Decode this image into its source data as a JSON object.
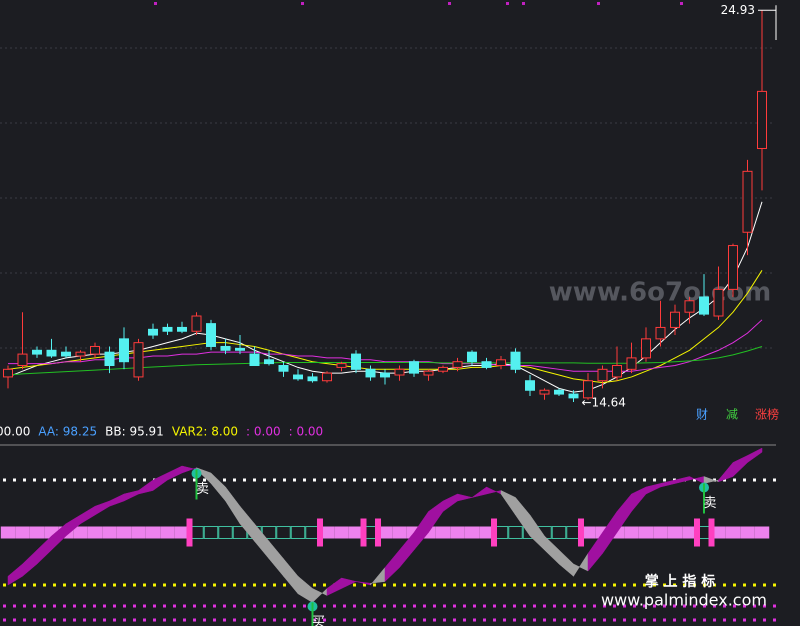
{
  "chart_data": {
    "type": "candlestick",
    "ylim": [
      14.3,
      25.2
    ],
    "high_label": 24.93,
    "low_label": 14.64,
    "low_label_text": "←14.64",
    "up_color": "#ff3b3b",
    "down_color": "#54f0f0",
    "candles": [
      [
        15.3,
        15.6,
        15.0,
        15.5
      ],
      [
        15.6,
        17.0,
        15.5,
        15.9
      ],
      [
        16.0,
        16.1,
        15.8,
        15.9
      ],
      [
        16.0,
        16.3,
        15.8,
        15.85
      ],
      [
        15.95,
        16.1,
        15.8,
        15.85
      ],
      [
        15.85,
        16.0,
        15.7,
        15.95
      ],
      [
        15.9,
        16.2,
        15.8,
        16.1
      ],
      [
        15.95,
        16.1,
        15.4,
        15.6
      ],
      [
        16.3,
        16.6,
        15.5,
        15.7
      ],
      [
        15.3,
        16.3,
        15.2,
        16.2
      ],
      [
        16.55,
        16.7,
        16.3,
        16.4
      ],
      [
        16.6,
        16.7,
        16.4,
        16.5
      ],
      [
        16.6,
        16.75,
        16.45,
        16.5
      ],
      [
        16.5,
        17.0,
        16.4,
        16.9
      ],
      [
        16.7,
        16.8,
        16.0,
        16.1
      ],
      [
        16.1,
        16.3,
        15.9,
        16.0
      ],
      [
        16.05,
        16.4,
        15.9,
        16.0
      ],
      [
        15.9,
        16.1,
        15.6,
        15.6
      ],
      [
        15.75,
        16.0,
        15.6,
        15.65
      ],
      [
        15.6,
        15.7,
        15.3,
        15.45
      ],
      [
        15.35,
        15.5,
        15.2,
        15.25
      ],
      [
        15.3,
        15.4,
        15.15,
        15.2
      ],
      [
        15.2,
        15.45,
        15.15,
        15.4
      ],
      [
        15.55,
        15.7,
        15.45,
        15.65
      ],
      [
        15.9,
        16.0,
        15.4,
        15.5
      ],
      [
        15.5,
        15.6,
        15.2,
        15.3
      ],
      [
        15.4,
        15.5,
        15.1,
        15.3
      ],
      [
        15.35,
        15.6,
        15.2,
        15.5
      ],
      [
        15.7,
        15.75,
        15.3,
        15.4
      ],
      [
        15.35,
        15.5,
        15.2,
        15.45
      ],
      [
        15.45,
        15.6,
        15.4,
        15.55
      ],
      [
        15.55,
        15.8,
        15.45,
        15.7
      ],
      [
        15.95,
        16.0,
        15.6,
        15.7
      ],
      [
        15.7,
        15.8,
        15.5,
        15.55
      ],
      [
        15.6,
        15.85,
        15.5,
        15.75
      ],
      [
        15.95,
        16.05,
        15.4,
        15.5
      ],
      [
        15.2,
        15.35,
        14.8,
        14.95
      ],
      [
        14.85,
        15.0,
        14.7,
        14.95
      ],
      [
        14.95,
        15.0,
        14.8,
        14.85
      ],
      [
        14.85,
        14.95,
        14.64,
        14.75
      ],
      [
        14.75,
        15.4,
        14.7,
        15.2
      ],
      [
        15.2,
        15.6,
        15.0,
        15.5
      ],
      [
        15.3,
        16.1,
        15.2,
        15.6
      ],
      [
        15.5,
        16.2,
        15.4,
        15.8
      ],
      [
        15.8,
        16.6,
        15.7,
        16.3
      ],
      [
        16.3,
        17.3,
        16.1,
        16.6
      ],
      [
        16.6,
        17.2,
        16.4,
        17.0
      ],
      [
        17.0,
        17.4,
        16.7,
        17.3
      ],
      [
        17.4,
        18.0,
        16.9,
        16.95
      ],
      [
        16.9,
        18.2,
        16.8,
        17.6
      ],
      [
        17.6,
        18.8,
        17.4,
        18.75
      ],
      [
        19.1,
        21.0,
        18.5,
        20.7
      ],
      [
        21.3,
        24.93,
        20.2,
        22.8
      ]
    ],
    "ma": [
      {
        "color": "#ffffff",
        "values": [
          15.3,
          15.45,
          15.6,
          15.7,
          15.8,
          15.85,
          15.9,
          15.9,
          15.95,
          16.0,
          16.1,
          16.2,
          16.3,
          16.45,
          16.4,
          16.3,
          16.2,
          16.0,
          15.85,
          15.7,
          15.55,
          15.45,
          15.4,
          15.4,
          15.45,
          15.45,
          15.4,
          15.4,
          15.45,
          15.45,
          15.5,
          15.55,
          15.6,
          15.6,
          15.65,
          15.6,
          15.4,
          15.2,
          15.0,
          14.9,
          14.95,
          15.1,
          15.3,
          15.55,
          15.85,
          16.2,
          16.55,
          16.85,
          17.1,
          17.4,
          17.9,
          18.7,
          19.9
        ]
      },
      {
        "color": "#f5f500",
        "values": [
          15.5,
          15.55,
          15.6,
          15.65,
          15.7,
          15.75,
          15.8,
          15.85,
          15.9,
          15.95,
          16.0,
          16.05,
          16.1,
          16.15,
          16.2,
          16.2,
          16.15,
          16.1,
          16.0,
          15.9,
          15.8,
          15.7,
          15.65,
          15.6,
          15.55,
          15.5,
          15.5,
          15.5,
          15.5,
          15.5,
          15.5,
          15.5,
          15.55,
          15.55,
          15.6,
          15.6,
          15.55,
          15.45,
          15.35,
          15.25,
          15.2,
          15.15,
          15.2,
          15.3,
          15.45,
          15.6,
          15.8,
          16.0,
          16.3,
          16.6,
          17.0,
          17.5,
          18.1
        ]
      },
      {
        "color": "#e030e0",
        "values": [
          15.65,
          15.65,
          15.65,
          15.65,
          15.7,
          15.7,
          15.75,
          15.75,
          15.8,
          15.8,
          15.85,
          15.85,
          15.9,
          15.9,
          15.95,
          15.95,
          15.95,
          15.95,
          15.9,
          15.9,
          15.85,
          15.85,
          15.8,
          15.8,
          15.75,
          15.75,
          15.7,
          15.7,
          15.7,
          15.7,
          15.65,
          15.65,
          15.65,
          15.65,
          15.6,
          15.6,
          15.6,
          15.55,
          15.5,
          15.45,
          15.45,
          15.45,
          15.45,
          15.45,
          15.5,
          15.55,
          15.6,
          15.7,
          15.85,
          16.0,
          16.2,
          16.45,
          16.8
        ]
      },
      {
        "color": "#22c022",
        "values": [
          15.35,
          15.38,
          15.4,
          15.42,
          15.44,
          15.46,
          15.48,
          15.5,
          15.52,
          15.54,
          15.56,
          15.58,
          15.6,
          15.62,
          15.63,
          15.64,
          15.65,
          15.66,
          15.67,
          15.68,
          15.68,
          15.68,
          15.68,
          15.68,
          15.68,
          15.68,
          15.68,
          15.68,
          15.68,
          15.68,
          15.67,
          15.67,
          15.67,
          15.67,
          15.67,
          15.67,
          15.67,
          15.67,
          15.67,
          15.67,
          15.66,
          15.66,
          15.66,
          15.66,
          15.67,
          15.68,
          15.7,
          15.72,
          15.75,
          15.8,
          15.88,
          15.98,
          16.1
        ]
      }
    ],
    "buttons": [
      {
        "label": "财",
        "color": "#4aa0ff"
      },
      {
        "label": "减",
        "color": "#40d040"
      },
      {
        "label": "涨榜",
        "color": "#ff4040"
      }
    ],
    "watermark": "www.6o7o.com",
    "indicator": {
      "header": [
        {
          "label": "00.00",
          "color": "#ffffff"
        },
        {
          "label": "AA: 98.25",
          "color": "#4aa0ff"
        },
        {
          "label": "BB: 95.91",
          "color": "#ffffff"
        },
        {
          "label": "VAR2: 8.00",
          "color": "#f5f500"
        },
        {
          "label": ": 0.00",
          "color": "#e030e0"
        },
        {
          "label": ": 0.00",
          "color": "#e030e0"
        }
      ],
      "ylim": [
        0,
        100
      ],
      "band": 50,
      "up_color": "#a010a0",
      "down_color": "#a0a0a0",
      "AA": [
        25,
        32,
        40,
        48,
        55,
        60,
        65,
        68,
        72,
        74,
        80,
        84,
        88,
        86,
        78,
        68,
        55,
        45,
        35,
        25,
        15,
        10,
        18,
        24,
        22,
        20,
        30,
        40,
        50,
        62,
        68,
        72,
        70,
        76,
        72,
        60,
        48,
        40,
        32,
        25,
        38,
        50,
        62,
        72,
        76,
        78,
        80,
        82,
        78,
        80,
        90,
        94,
        98.25
      ],
      "BB": [
        20,
        25,
        32,
        40,
        48,
        55,
        60,
        65,
        68,
        72,
        74,
        80,
        84,
        87,
        84,
        76,
        65,
        55,
        45,
        35,
        25,
        18,
        14,
        18,
        22,
        21,
        22,
        30,
        40,
        50,
        62,
        68,
        70,
        72,
        74,
        70,
        60,
        48,
        40,
        32,
        28,
        38,
        50,
        62,
        72,
        76,
        78,
        80,
        82,
        79,
        82,
        90,
        95.91
      ],
      "signals": [
        null,
        null,
        null,
        null,
        null,
        null,
        null,
        null,
        null,
        null,
        null,
        null,
        null,
        "卖",
        null,
        null,
        null,
        null,
        null,
        null,
        null,
        "买",
        null,
        null,
        null,
        null,
        null,
        null,
        null,
        null,
        null,
        null,
        null,
        null,
        null,
        null,
        null,
        null,
        null,
        null,
        null,
        null,
        null,
        null,
        null,
        null,
        null,
        null,
        "卖",
        null,
        null,
        null,
        null
      ],
      "levels": [
        {
          "value": 80,
          "color": "#ffffff"
        },
        {
          "value": 20,
          "color": "#f5f500"
        },
        {
          "value": 8,
          "color": "#e030e0"
        },
        {
          "value": 0,
          "color": "#e030e0"
        }
      ]
    },
    "footer_title": "掌 上 指 标",
    "footer_url": "www.palmindex.com"
  }
}
